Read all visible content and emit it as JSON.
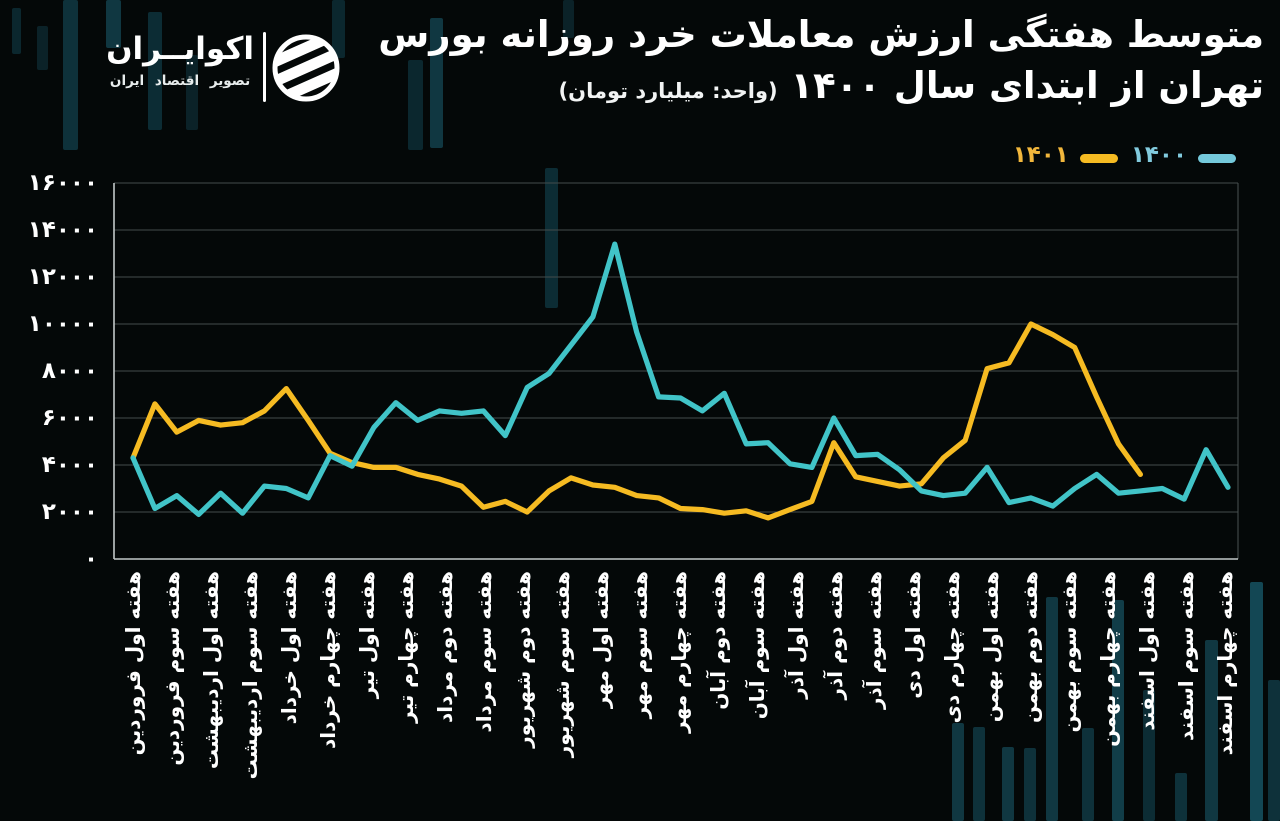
{
  "brand": {
    "name": "اکوایــران",
    "tagline": "تصویر اقتصاد ایران",
    "logo_icon": "striped-globe"
  },
  "title": {
    "line1": "متوسط هفتگی ارزش معاملات خرد روزانه بورس",
    "line2": "تهران از ابتدای سال ۱۴۰۰",
    "unit_parenthetical": "(واحد: میلیارد تومان)"
  },
  "legend": {
    "items": [
      {
        "label": "۱۴۰۱",
        "text_color": "#f2b73c",
        "swatch_color": "#f6bb22"
      },
      {
        "label": "۱۴۰۰",
        "text_color": "#82cbde",
        "swatch_color": "#74c9db"
      }
    ]
  },
  "chart_data": {
    "type": "line",
    "title": "متوسط هفتگی ارزش معاملات خرد روزانه بورس تهران از ابتدای سال ۱۴۰۰",
    "unit": "میلیارد تومان",
    "ylim": [
      0,
      16000
    ],
    "ytick_step": 2000,
    "ytick_labels_fa": [
      "۰",
      "۲۰۰۰",
      "۴۰۰۰",
      "۶۰۰۰",
      "۸۰۰۰",
      "۱۰۰۰۰",
      "۱۲۰۰۰",
      "۱۴۰۰۰",
      "۱۶۰۰۰"
    ],
    "grid": "horizontal",
    "legend_position": "top-right",
    "categories": [
      "هفته اول فروردین",
      "هفته سوم فروردین",
      "هفته اول اردیبهشت",
      "هفته سوم اردیبهشت",
      "هفته اول خرداد",
      "هفته چهارم خرداد",
      "هفته اول تیر",
      "هفته چهارم تیر",
      "هفته دوم مرداد",
      "هفته سوم مرداد",
      "هفته دوم شهریور",
      "هفته سوم شهریور",
      "هفته اول مهر",
      "هفته سوم مهر",
      "هفته چهارم مهر",
      "هفته دوم آبان",
      "هفته سوم آبان",
      "هفته اول آذر",
      "هفته دوم آذر",
      "هفته سوم آذر",
      "هفته اول دی",
      "هفته چهارم دی",
      "هفته اول بهمن",
      "هفته دوم بهمن",
      "هفته سوم بهمن",
      "هفته چهارم بهمن",
      "هفته اول اسفند",
      "هفته سوم اسفند",
      "هفته چهارم اسفند"
    ],
    "x_note": "series are weekly (51 points for 1400, 47 for 1401); the 29 tick labels are evenly spaced across the axis",
    "series": [
      {
        "name": "۱۴۰۱",
        "color": "#f6bb22",
        "values": [
          4300,
          6600,
          5400,
          5900,
          5700,
          5800,
          6300,
          7250,
          5900,
          4500,
          4100,
          3900,
          3900,
          3600,
          3400,
          3100,
          2200,
          2450,
          2000,
          2900,
          3450,
          3150,
          3050,
          2700,
          2600,
          2150,
          2100,
          1950,
          2050,
          1750,
          2100,
          2450,
          4950,
          3500,
          3300,
          3100,
          3200,
          4300,
          5050,
          8100,
          8350,
          10000,
          9550,
          9000,
          6900,
          4900,
          3600
        ]
      },
      {
        "name": "۱۴۰۰",
        "color": "#41c4c8",
        "values": [
          4300,
          2150,
          2700,
          1900,
          2800,
          1950,
          3100,
          3000,
          2600,
          4400,
          3950,
          5600,
          6650,
          5900,
          6300,
          6200,
          6300,
          5250,
          7300,
          7900,
          9100,
          10300,
          13400,
          9650,
          6900,
          6850,
          6300,
          7050,
          4900,
          4950,
          4050,
          3900,
          6000,
          4400,
          4450,
          3800,
          2900,
          2700,
          2800,
          3900,
          2400,
          2600,
          2250,
          3000,
          3600,
          2800,
          2900,
          3000,
          2550,
          4650,
          3050
        ]
      }
    ]
  }
}
